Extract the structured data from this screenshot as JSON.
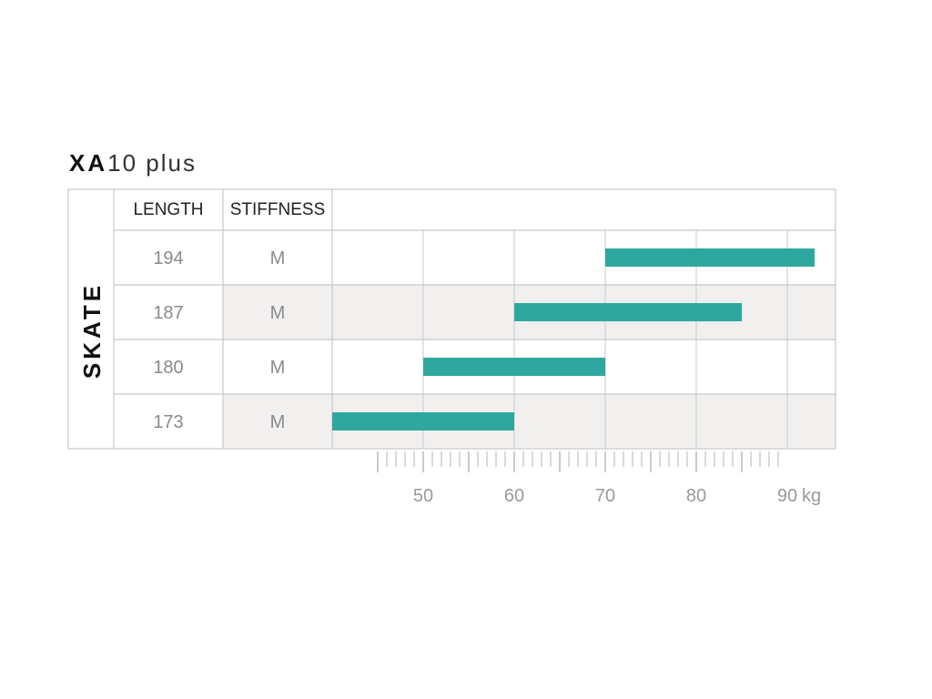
{
  "title": {
    "model_bold": "XA",
    "model_rest": "10 plus"
  },
  "chart_data": {
    "type": "bar",
    "orientation": "horizontal-range",
    "section_label": "SKATE",
    "columns": [
      "LENGTH",
      "STIFFNESS"
    ],
    "rows": [
      {
        "length": "194",
        "stiffness": "M",
        "min": 70,
        "max": 93
      },
      {
        "length": "187",
        "stiffness": "M",
        "min": 60,
        "max": 85
      },
      {
        "length": "180",
        "stiffness": "M",
        "min": 50,
        "max": 70
      },
      {
        "length": "173",
        "stiffness": "M",
        "min": 40,
        "max": 60
      }
    ],
    "x_ticks": [
      "50",
      "60",
      "70",
      "80",
      "90"
    ],
    "x_unit": "kg",
    "xlim": [
      40,
      95
    ],
    "grid": true,
    "colors": {
      "bar": "#2ea89f",
      "row_shade": "#f2f0ef",
      "grid": "#c8c8c8"
    }
  }
}
